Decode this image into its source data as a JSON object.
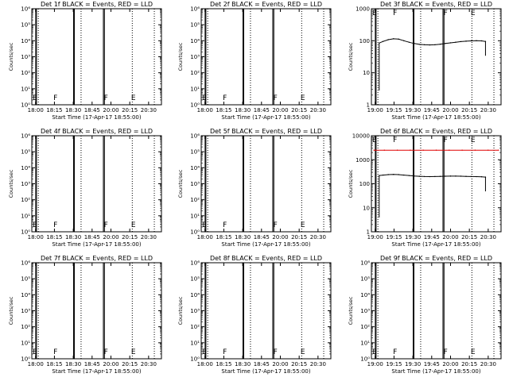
{
  "figure": {
    "background": "#ffffff",
    "events_color": "#000000",
    "lld_color": "#e00000"
  },
  "chart_data": [
    {
      "type": "line",
      "title": "Det 1f BLACK = Events, RED = LLD",
      "xlabel": "Start Time (17-Apr-17 18:55:00)",
      "ylabel": "Counts/sec",
      "xticks": [
        "18:00",
        "18:15",
        "18:30",
        "18:45",
        "20:00",
        "20:15",
        "20:30"
      ],
      "yscale": "log",
      "ylim": [
        1,
        1000000
      ],
      "ytick_values": [
        1,
        10,
        100,
        1000,
        10000,
        100000,
        1000000
      ],
      "yticks": [
        "10⁰",
        "10¹",
        "10²",
        "10³",
        "10⁴",
        "10⁵",
        "10⁶"
      ],
      "series": [],
      "events": [
        "E",
        "F",
        "F",
        "E"
      ]
    },
    {
      "type": "line",
      "title": "Det 2f BLACK = Events, RED = LLD",
      "xlabel": "Start Time (17-Apr-17 18:55:00)",
      "ylabel": "Counts/sec",
      "xticks": [
        "18:00",
        "18:15",
        "18:30",
        "18:45",
        "20:00",
        "20:15",
        "20:30"
      ],
      "yscale": "log",
      "ylim": [
        1,
        1000000
      ],
      "ytick_values": [
        1,
        10,
        100,
        1000,
        10000,
        100000,
        1000000
      ],
      "yticks": [
        "10⁰",
        "10¹",
        "10²",
        "10³",
        "10⁴",
        "10⁵",
        "10⁶"
      ],
      "series": [],
      "events": [
        "E",
        "F",
        "F",
        "E"
      ]
    },
    {
      "type": "line",
      "title": "Det 3f BLACK = Events, RED = LLD",
      "xlabel": "Start Time (17-Apr-17 18:55:00)",
      "ylabel": "Counts/sec",
      "xticks": [
        "19:00",
        "19:15",
        "19:30",
        "19:45",
        "20:00",
        "20:15",
        "20:30"
      ],
      "yscale": "log",
      "ylim": [
        1,
        1000
      ],
      "ytick_values": [
        1,
        10,
        100,
        1000
      ],
      "yticks": [
        "1",
        "10",
        "100",
        "1000"
      ],
      "series": [
        {
          "color": "#000000",
          "x": [
            0.06,
            0.09,
            0.13,
            0.17,
            0.21,
            0.25,
            0.29,
            0.33,
            0.37,
            0.41,
            0.45,
            0.49,
            0.53,
            0.57,
            0.61,
            0.65,
            0.69,
            0.73,
            0.77,
            0.81,
            0.85,
            0.88
          ],
          "y": [
            85,
            95,
            108,
            115,
            112,
            100,
            90,
            82,
            77,
            75,
            74,
            75,
            78,
            82,
            86,
            90,
            94,
            97,
            99,
            100,
            99,
            95
          ]
        }
      ],
      "events": [
        "E",
        "F",
        "F",
        "E"
      ]
    },
    {
      "type": "line",
      "title": "Det 4f BLACK = Events, RED = LLD",
      "xlabel": "Start Time (17-Apr-17 18:55:00)",
      "ylabel": "Counts/sec",
      "xticks": [
        "18:00",
        "18:15",
        "18:30",
        "18:45",
        "20:00",
        "20:15",
        "20:30"
      ],
      "yscale": "log",
      "ylim": [
        1,
        1000000
      ],
      "ytick_values": [
        1,
        10,
        100,
        1000,
        10000,
        100000,
        1000000
      ],
      "yticks": [
        "10⁰",
        "10¹",
        "10²",
        "10³",
        "10⁴",
        "10⁵",
        "10⁶"
      ],
      "series": [],
      "events": [
        "E",
        "F",
        "F",
        "E"
      ]
    },
    {
      "type": "line",
      "title": "Det 5f BLACK = Events, RED = LLD",
      "xlabel": "Start Time (17-Apr-17 18:55:00)",
      "ylabel": "Counts/sec",
      "xticks": [
        "18:00",
        "18:15",
        "18:30",
        "18:45",
        "20:00",
        "20:15",
        "20:30"
      ],
      "yscale": "log",
      "ylim": [
        1,
        1000000
      ],
      "ytick_values": [
        1,
        10,
        100,
        1000,
        10000,
        100000,
        1000000
      ],
      "yticks": [
        "10⁰",
        "10¹",
        "10²",
        "10³",
        "10⁴",
        "10⁵",
        "10⁶"
      ],
      "series": [],
      "events": [
        "E",
        "F",
        "F",
        "E"
      ]
    },
    {
      "type": "line",
      "title": "Det 6f BLACK = Events, RED = LLD",
      "xlabel": "Start Time (17-Apr-17 18:55:00)",
      "ylabel": "Counts/sec",
      "xticks": [
        "19:00",
        "19:15",
        "19:30",
        "19:45",
        "20:00",
        "20:15",
        "20:30"
      ],
      "yscale": "log",
      "ylim": [
        1,
        10000
      ],
      "ytick_values": [
        1,
        10,
        100,
        1000,
        10000
      ],
      "yticks": [
        "1",
        "10",
        "100",
        "1000",
        "10000"
      ],
      "series": [
        {
          "color": "#e00000",
          "x": [
            0.02,
            0.1,
            0.2,
            0.3,
            0.4,
            0.5,
            0.6,
            0.7,
            0.8,
            0.9,
            0.98
          ],
          "y": [
            2500,
            2500,
            2500,
            2500,
            2500,
            2500,
            2500,
            2500,
            2500,
            2500,
            2500
          ]
        },
        {
          "color": "#000000",
          "x": [
            0.06,
            0.09,
            0.13,
            0.17,
            0.21,
            0.25,
            0.29,
            0.33,
            0.37,
            0.41,
            0.45,
            0.49,
            0.53,
            0.57,
            0.61,
            0.65,
            0.69,
            0.73,
            0.77,
            0.81,
            0.85,
            0.88
          ],
          "y": [
            220,
            230,
            240,
            245,
            240,
            230,
            220,
            210,
            205,
            200,
            198,
            200,
            203,
            206,
            208,
            208,
            206,
            203,
            200,
            198,
            196,
            190
          ]
        }
      ],
      "events": [
        "E",
        "F",
        "F",
        "E"
      ]
    },
    {
      "type": "line",
      "title": "Det 7f BLACK = Events, RED = LLD",
      "xlabel": "Start Time (17-Apr-17 18:55:00)",
      "ylabel": "Counts/sec",
      "xticks": [
        "18:00",
        "18:15",
        "18:30",
        "18:45",
        "20:00",
        "20:15",
        "20:30"
      ],
      "yscale": "log",
      "ylim": [
        1,
        1000000
      ],
      "ytick_values": [
        1,
        10,
        100,
        1000,
        10000,
        100000,
        1000000
      ],
      "yticks": [
        "10⁰",
        "10¹",
        "10²",
        "10³",
        "10⁴",
        "10⁵",
        "10⁶"
      ],
      "series": [],
      "events": [
        "E",
        "F",
        "F",
        "E"
      ]
    },
    {
      "type": "line",
      "title": "Det 8f BLACK = Events, RED = LLD",
      "xlabel": "Start Time (17-Apr-17 18:55:00)",
      "ylabel": "Counts/sec",
      "xticks": [
        "18:00",
        "18:15",
        "18:30",
        "18:45",
        "20:00",
        "20:15",
        "20:30"
      ],
      "yscale": "log",
      "ylim": [
        1,
        1000000
      ],
      "ytick_values": [
        1,
        10,
        100,
        1000,
        10000,
        100000,
        1000000
      ],
      "yticks": [
        "10⁰",
        "10¹",
        "10²",
        "10³",
        "10⁴",
        "10⁵",
        "10⁶"
      ],
      "series": [],
      "events": [
        "E",
        "F",
        "F",
        "E"
      ]
    },
    {
      "type": "line",
      "title": "Det 9f BLACK = Events, RED = LLD",
      "xlabel": "Start Time (17-Apr-17 18:55:00)",
      "ylabel": "Counts/sec",
      "xticks": [
        "19:00",
        "19:15",
        "19:30",
        "19:45",
        "20:00",
        "20:15",
        "20:30"
      ],
      "yscale": "log",
      "ylim": [
        1,
        1000000
      ],
      "ytick_values": [
        1,
        10,
        100,
        1000,
        10000,
        100000,
        1000000
      ],
      "yticks": [
        "10⁰",
        "10¹",
        "10²",
        "10³",
        "10⁴",
        "10⁵",
        "10⁶"
      ],
      "series": [],
      "events": [
        "E",
        "F",
        "F",
        "E"
      ]
    }
  ]
}
